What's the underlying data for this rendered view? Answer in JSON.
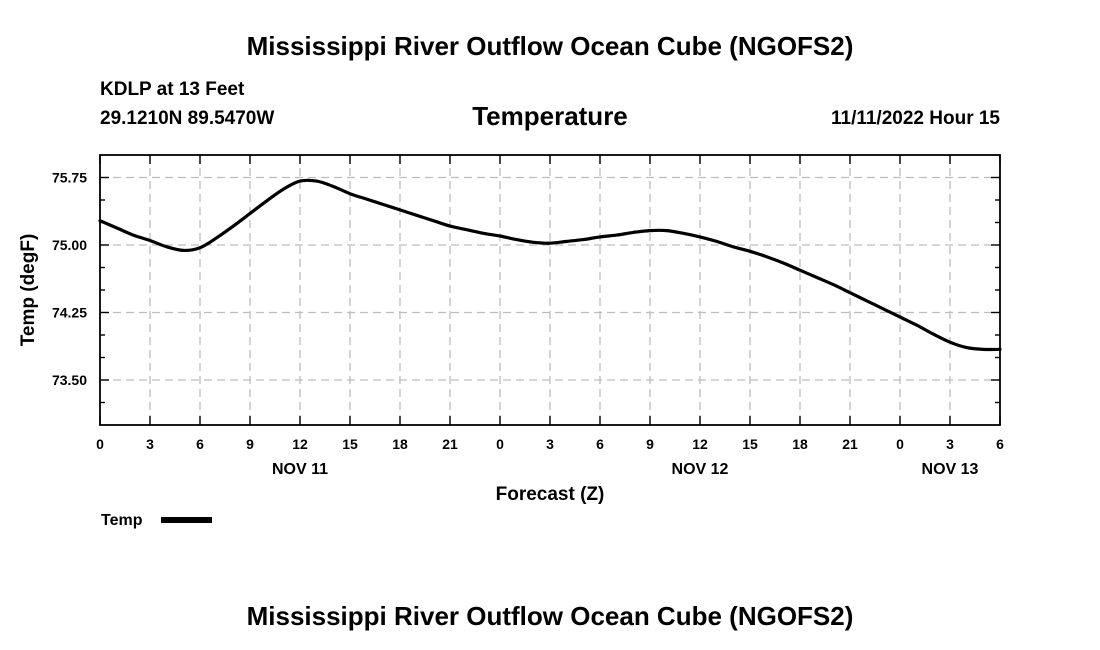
{
  "header": {
    "title": "Mississippi River Outflow Ocean Cube (NGOFS2)",
    "station": "KDLP at 13 Feet",
    "location": "29.1210N  89.5470W",
    "variable": "Temperature",
    "timestamp": "11/11/2022 Hour 15"
  },
  "footer": {
    "title": "Mississippi River Outflow Ocean Cube (NGOFS2)"
  },
  "chart_data": {
    "type": "line",
    "title": "Temperature",
    "xlabel": "Forecast (Z)",
    "ylabel": "Temp (degF)",
    "xlim": [
      0,
      54
    ],
    "ylim": [
      73.0,
      76.0
    ],
    "grid": true,
    "x_ticks": [
      0,
      3,
      6,
      9,
      12,
      15,
      18,
      21,
      24,
      27,
      30,
      33,
      36,
      39,
      42,
      45,
      48,
      51,
      54
    ],
    "x_tick_labels": [
      "0",
      "3",
      "6",
      "9",
      "12",
      "15",
      "18",
      "21",
      "0",
      "3",
      "6",
      "9",
      "12",
      "15",
      "18",
      "21",
      "0",
      "3",
      "6"
    ],
    "y_ticks": [
      75.75,
      75.0,
      74.25,
      73.5
    ],
    "y_tick_labels": [
      "75.75",
      "75.00",
      "74.25",
      "73.50"
    ],
    "y_minor_step": 0.25,
    "date_labels": [
      {
        "x": 12,
        "label": "NOV 11"
      },
      {
        "x": 36,
        "label": "NOV 12"
      },
      {
        "x": 51,
        "label": "NOV 13"
      }
    ],
    "legend": {
      "label": "Temp",
      "placement": "bottom-left"
    },
    "series": [
      {
        "name": "Temp",
        "x": [
          0,
          1,
          2,
          3,
          4,
          5,
          6,
          7,
          8,
          9,
          10,
          11,
          12,
          13,
          14,
          15,
          16,
          17,
          18,
          19,
          20,
          21,
          22,
          23,
          24,
          25,
          26,
          27,
          28,
          29,
          30,
          31,
          32,
          33,
          34,
          35,
          36,
          37,
          38,
          39,
          40,
          41,
          42,
          43,
          44,
          45,
          46,
          47,
          48,
          49,
          50,
          51,
          52,
          53,
          54
        ],
        "values": [
          75.27,
          75.19,
          75.11,
          75.05,
          74.98,
          74.94,
          74.97,
          75.08,
          75.21,
          75.35,
          75.49,
          75.62,
          75.71,
          75.71,
          75.65,
          75.57,
          75.51,
          75.45,
          75.39,
          75.33,
          75.27,
          75.21,
          75.17,
          75.13,
          75.1,
          75.06,
          75.03,
          75.02,
          75.04,
          75.06,
          75.09,
          75.11,
          75.14,
          75.16,
          75.16,
          75.13,
          75.09,
          75.04,
          74.98,
          74.93,
          74.87,
          74.8,
          74.72,
          74.64,
          74.56,
          74.47,
          74.38,
          74.29,
          74.2,
          74.11,
          74.01,
          73.92,
          73.86,
          73.84,
          73.84
        ]
      }
    ]
  }
}
